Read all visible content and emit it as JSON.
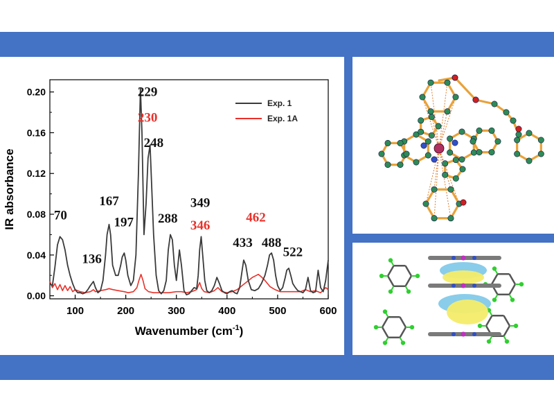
{
  "colors": {
    "banner": "#4472c4",
    "exp1": "#3a3a3a",
    "exp1a": "#e8312a",
    "atom": "#2e8b57",
    "bond": "#e8a23a",
    "metal": "#b03060"
  },
  "chart_data": {
    "type": "line",
    "xlabel": "Wavenumber (cm",
    "xlabel_sup": "-1",
    "xlabel_end": ")",
    "ylabel": "IR absorbance",
    "xlim": [
      50,
      600
    ],
    "ylim": [
      -0.003,
      0.212
    ],
    "xticks": [
      100,
      200,
      300,
      400,
      500,
      600
    ],
    "yticks": [
      "0.00",
      "0.04",
      "0.08",
      "0.12",
      "0.16",
      "0.20"
    ],
    "legend_position": "top-right",
    "series": [
      {
        "name": "Exp. 1",
        "color": "#3a3a3a",
        "x": [
          50,
          55,
          60,
          65,
          70,
          75,
          80,
          85,
          90,
          95,
          100,
          105,
          110,
          115,
          120,
          125,
          130,
          136,
          140,
          145,
          150,
          155,
          160,
          163,
          167,
          170,
          174,
          180,
          185,
          190,
          193,
          197,
          200,
          204,
          210,
          215,
          220,
          225,
          229,
          232,
          236,
          240,
          244,
          248,
          251,
          255,
          260,
          265,
          270,
          275,
          280,
          284,
          288,
          292,
          296,
          300,
          303,
          306,
          310,
          315,
          320,
          325,
          330,
          335,
          340,
          343,
          346,
          349,
          352,
          356,
          360,
          365,
          370,
          375,
          380,
          385,
          390,
          395,
          400,
          405,
          410,
          415,
          420,
          425,
          430,
          433,
          437,
          442,
          448,
          455,
          462,
          468,
          475,
          480,
          484,
          488,
          492,
          496,
          500,
          505,
          510,
          515,
          518,
          522,
          526,
          530,
          535,
          540,
          545,
          550,
          555,
          560,
          565,
          570,
          575,
          580,
          585,
          590,
          595,
          600
        ],
        "y": [
          0.012,
          0.01,
          0.028,
          0.05,
          0.058,
          0.055,
          0.045,
          0.03,
          0.02,
          0.012,
          0.006,
          0.003,
          0.003,
          0.002,
          0.003,
          0.006,
          0.01,
          0.014,
          0.008,
          0.003,
          0.005,
          0.015,
          0.04,
          0.06,
          0.07,
          0.06,
          0.03,
          0.02,
          0.02,
          0.03,
          0.038,
          0.042,
          0.035,
          0.02,
          0.01,
          0.015,
          0.04,
          0.12,
          0.204,
          0.16,
          0.06,
          0.09,
          0.135,
          0.148,
          0.11,
          0.06,
          0.02,
          0.005,
          0.002,
          0.005,
          0.015,
          0.045,
          0.06,
          0.055,
          0.03,
          0.015,
          0.03,
          0.045,
          0.03,
          0.005,
          0.001,
          0.002,
          0.005,
          0.008,
          0.007,
          0.02,
          0.045,
          0.058,
          0.04,
          0.015,
          0.005,
          0.003,
          0.005,
          0.01,
          0.018,
          0.012,
          0.005,
          0.003,
          0.002,
          0.004,
          0.005,
          0.003,
          0.002,
          0.008,
          0.025,
          0.035,
          0.03,
          0.015,
          0.006,
          0.005,
          0.007,
          0.012,
          0.02,
          0.03,
          0.04,
          0.042,
          0.035,
          0.02,
          0.01,
          0.005,
          0.008,
          0.018,
          0.025,
          0.027,
          0.02,
          0.012,
          0.008,
          0.005,
          0.004,
          0.003,
          0.006,
          0.018,
          0.005,
          0.003,
          0.004,
          0.025,
          0.008,
          0.004,
          0.015,
          0.035
        ]
      },
      {
        "name": "Exp. 1A",
        "color": "#e8312a",
        "x": [
          50,
          55,
          60,
          65,
          70,
          75,
          80,
          85,
          90,
          95,
          100,
          110,
          120,
          130,
          136,
          140,
          150,
          160,
          167,
          175,
          185,
          197,
          205,
          215,
          222,
          226,
          230,
          234,
          238,
          245,
          255,
          270,
          285,
          300,
          310,
          320,
          330,
          340,
          346,
          350,
          355,
          365,
          375,
          382,
          390,
          400,
          410,
          420,
          430,
          440,
          450,
          458,
          462,
          467,
          475,
          485,
          495,
          505,
          515,
          525,
          535,
          545,
          555,
          565,
          575,
          585,
          595,
          600
        ],
        "y": [
          0.014,
          0.008,
          0.012,
          0.006,
          0.011,
          0.005,
          0.01,
          0.005,
          0.009,
          0.004,
          0.006,
          0.004,
          0.003,
          0.004,
          0.006,
          0.004,
          0.005,
          0.006,
          0.007,
          0.006,
          0.005,
          0.004,
          0.003,
          0.004,
          0.008,
          0.015,
          0.021,
          0.015,
          0.007,
          0.004,
          0.003,
          0.003,
          0.003,
          0.004,
          0.004,
          0.003,
          0.004,
          0.006,
          0.013,
          0.007,
          0.004,
          0.003,
          0.005,
          0.008,
          0.004,
          0.003,
          0.004,
          0.006,
          0.01,
          0.014,
          0.018,
          0.02,
          0.021,
          0.019,
          0.015,
          0.009,
          0.006,
          0.004,
          0.004,
          0.004,
          0.004,
          0.004,
          0.006,
          0.004,
          0.005,
          0.003,
          0.008,
          0.006
        ]
      }
    ],
    "annotations": [
      {
        "text": "70",
        "x": 71,
        "y": 0.075,
        "color": "black"
      },
      {
        "text": "136",
        "x": 133,
        "y": 0.032,
        "color": "black"
      },
      {
        "text": "167",
        "x": 167,
        "y": 0.089,
        "color": "black"
      },
      {
        "text": "197",
        "x": 196,
        "y": 0.068,
        "color": "black"
      },
      {
        "text": "229",
        "x": 243,
        "y": 0.196,
        "color": "black"
      },
      {
        "text": "230",
        "x": 243,
        "y": 0.171,
        "color": "red"
      },
      {
        "text": "248",
        "x": 255,
        "y": 0.146,
        "color": "black"
      },
      {
        "text": "288",
        "x": 283,
        "y": 0.072,
        "color": "black"
      },
      {
        "text": "349",
        "x": 347,
        "y": 0.087,
        "color": "black"
      },
      {
        "text": "346",
        "x": 347,
        "y": 0.065,
        "color": "red"
      },
      {
        "text": "462",
        "x": 457,
        "y": 0.073,
        "color": "red"
      },
      {
        "text": "433",
        "x": 431,
        "y": 0.048,
        "color": "black"
      },
      {
        "text": "488",
        "x": 488,
        "y": 0.048,
        "color": "black"
      },
      {
        "text": "522",
        "x": 530,
        "y": 0.039,
        "color": "black"
      }
    ]
  }
}
